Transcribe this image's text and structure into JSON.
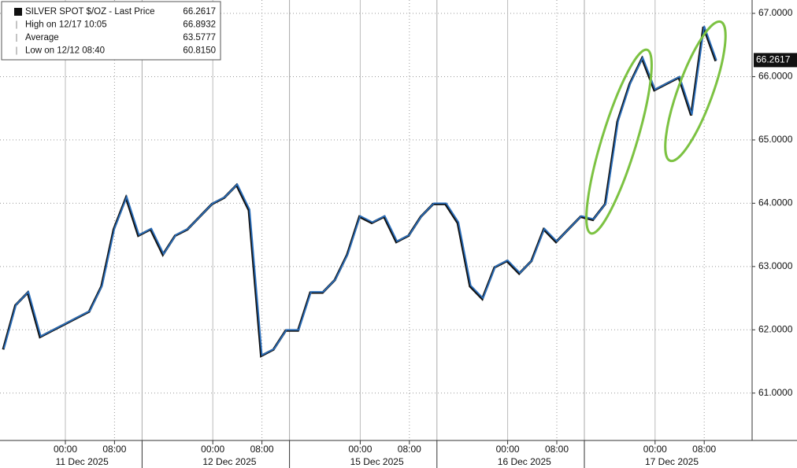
{
  "chart_data": {
    "type": "line",
    "title": "SILVER SPOT $/OZ - Last Price",
    "legend": [
      {
        "label": "SILVER SPOT $/OZ - Last Price",
        "value": "66.2617"
      },
      {
        "label": "High on 12/17 10:05",
        "value": "66.8932"
      },
      {
        "label": "Average",
        "value": "63.5777"
      },
      {
        "label": "Low on 12/12 08:40",
        "value": "60.8150"
      }
    ],
    "categories": [
      null,
      null,
      null,
      null,
      null,
      "00:00",
      null,
      null,
      null,
      "08:00",
      null,
      null,
      null,
      null,
      null,
      null,
      null,
      "00:00",
      null,
      null,
      null,
      "08:00",
      null,
      null,
      null,
      null,
      null,
      null,
      null,
      "00:00",
      null,
      null,
      null,
      "08:00",
      null,
      null,
      null,
      null,
      null,
      null,
      null,
      "00:00",
      null,
      null,
      null,
      "08:00",
      null,
      null,
      null,
      null,
      null,
      null,
      null,
      "00:00",
      null,
      null,
      null,
      "08:00",
      null
    ],
    "dates": [
      "11 Dec 2025",
      "12 Dec 2025",
      "15 Dec 2025",
      "16 Dec 2025",
      "17 Dec 2025"
    ],
    "series": [
      {
        "name": "SILVER SPOT $/OZ",
        "color": "#2a6ebb",
        "values": [
          61.7,
          62.4,
          62.6,
          61.9,
          62.0,
          62.1,
          62.2,
          62.3,
          62.7,
          63.6,
          64.1,
          63.5,
          63.6,
          63.2,
          63.5,
          63.6,
          63.8,
          64.0,
          64.1,
          64.3,
          63.9,
          61.6,
          61.7,
          62.0,
          62.0,
          62.6,
          62.6,
          62.8,
          63.2,
          63.8,
          63.7,
          63.8,
          63.4,
          63.5,
          63.8,
          64.0,
          64.0,
          63.7,
          62.7,
          62.5,
          63.0,
          63.1,
          62.9,
          63.1,
          63.6,
          63.4,
          63.6,
          63.8,
          63.75,
          64.0,
          65.3,
          65.9,
          66.3,
          65.8,
          65.9,
          66.0,
          65.4,
          66.8,
          66.26
        ]
      }
    ],
    "ylim": [
      60.5,
      67.46
    ],
    "yticks": [
      {
        "value": 61,
        "label": "61.0000"
      },
      {
        "value": 62,
        "label": "62.0000"
      },
      {
        "value": 63,
        "label": "63.0000"
      },
      {
        "value": 64,
        "label": "64.0000"
      },
      {
        "value": 65,
        "label": "65.0000"
      },
      {
        "value": 66,
        "label": "66.0000"
      },
      {
        "value": 67,
        "label": "67.0000"
      }
    ],
    "grid": true
  }
}
